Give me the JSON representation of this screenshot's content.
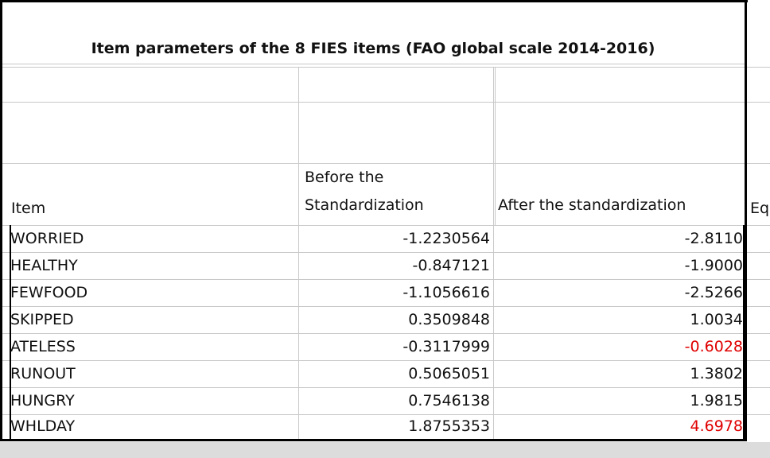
{
  "table": {
    "title": "Item parameters of the 8 FIES items (FAO global scale 2014-2016)",
    "headers": {
      "item": "Item",
      "before_line1": "Before the",
      "before_line2": "Standardization",
      "after": "After the standardization",
      "extra": "Eq"
    },
    "rows": [
      {
        "item": "WORRIED",
        "before": "-1.2230564",
        "after": "-2.8110"
      },
      {
        "item": "HEALTHY",
        "before": "-0.847121",
        "after": "-1.9000"
      },
      {
        "item": "FEWFOOD",
        "before": "-1.1056616",
        "after": "-2.5266"
      },
      {
        "item": "SKIPPED",
        "before": "0.3509848",
        "after": "1.0034"
      },
      {
        "item": "ATELESS",
        "before": "-0.3117999",
        "after": "-0.6028",
        "after_color": "#e00000"
      },
      {
        "item": "RUNOUT",
        "before": "0.5065051",
        "after": "1.3802"
      },
      {
        "item": "HUNGRY",
        "before": "0.7546138",
        "after": "1.9815"
      },
      {
        "item": "WHLDAY",
        "before": "1.8755353",
        "after": "4.6978",
        "after_color": "#e00000"
      }
    ]
  }
}
